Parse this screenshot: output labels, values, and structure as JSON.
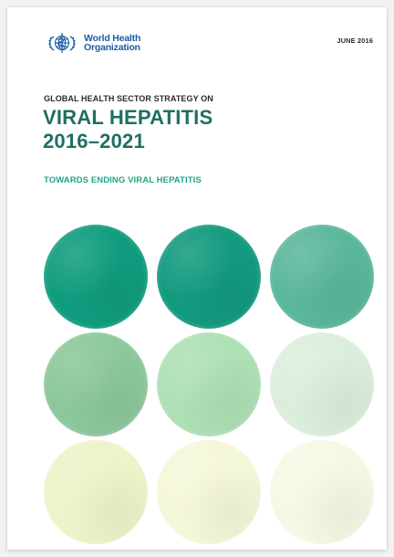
{
  "header": {
    "org_line1": "World Health",
    "org_line2": "Organization",
    "date": "JUNE 2016"
  },
  "cover": {
    "kicker": "GLOBAL HEALTH SECTOR STRATEGY ON",
    "title_line1": "VIRAL HEPATITIS",
    "title_line2": "2016–2021",
    "subtitle": "TOWARDS ENDING VIRAL HEPATITIS"
  },
  "icons": {
    "logo": "who-emblem-icon"
  },
  "colors": {
    "logo_blue": "#1a5da6",
    "title_teal": "#1f6f63",
    "subtitle_teal": "#22a487",
    "circles": [
      [
        "#109c7e",
        "#139a7f",
        "#5ab79b"
      ],
      [
        "#8cc79b",
        "#ade0b5",
        "#dbeedc"
      ],
      [
        "#eef3c9",
        "#f5f7d9",
        "#f7f8e4"
      ]
    ]
  }
}
